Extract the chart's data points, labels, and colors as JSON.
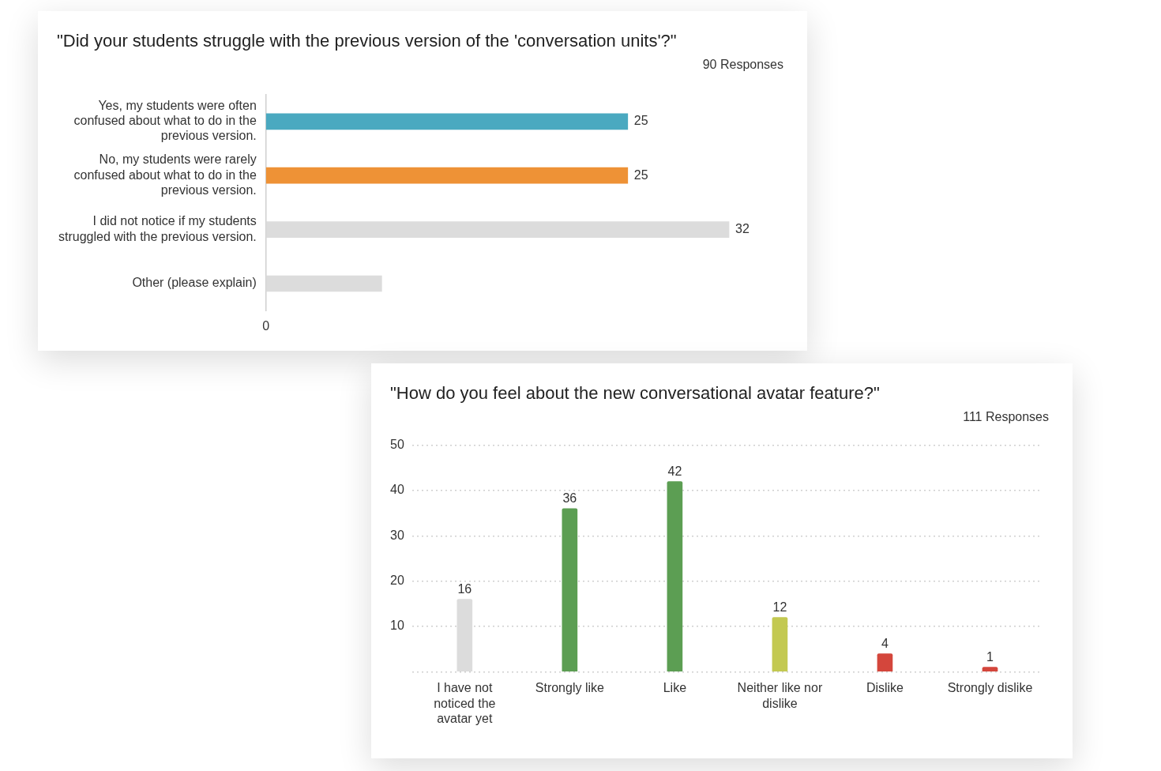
{
  "chart_data": [
    {
      "type": "bar",
      "orientation": "horizontal",
      "title": "\"Did your students struggle with the previous version of the 'conversation units'?\"",
      "subtitle": "90 Responses",
      "categories": [
        "Yes, my students were often confused about what to do in the previous version.",
        "No, my students were rarely confused about what to do in the previous version.",
        "I did not notice if my students struggled with the previous version.",
        "Other (please explain)"
      ],
      "values": [
        25,
        25,
        32,
        8
      ],
      "colors": [
        "#4aa9c0",
        "#ee9236",
        "#dcdcdc",
        "#dcdcdc"
      ],
      "value_labels": [
        "25",
        "25",
        "32",
        null
      ],
      "tick_labels": "y",
      "annotations": [
        "0"
      ]
    },
    {
      "type": "bar",
      "title": "\"How do you feel about the new conversational avatar feature?\"",
      "subtitle": "111 Responses",
      "categories": [
        "I have not noticed the avatar yet",
        "Strongly like",
        "Like",
        "Neither like nor dislike",
        "Dislike",
        "Strongly dislike"
      ],
      "values": [
        16,
        36,
        42,
        12,
        4,
        1
      ],
      "colors": [
        "#dcdcdc",
        "#5c9e53",
        "#5c9e53",
        "#c3c951",
        "#d4463c",
        "#d4463c"
      ],
      "ylim": [
        0,
        50
      ],
      "yticks": [
        {
          "value": 0,
          "label": null
        },
        10,
        20,
        30,
        40,
        50
      ],
      "data_labels": true,
      "grid": "y"
    }
  ]
}
